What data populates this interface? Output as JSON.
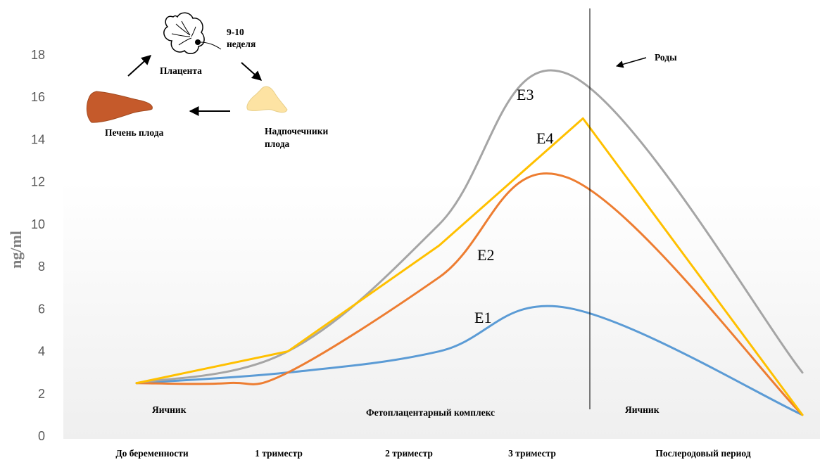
{
  "chart_data": {
    "type": "line",
    "ylabel": "ng/ml",
    "ylim": [
      0,
      18
    ],
    "yticks": [
      0,
      2,
      4,
      6,
      8,
      10,
      12,
      14,
      16,
      18
    ],
    "grid": false,
    "categories": [
      "До беременности",
      "1 триместр",
      "2 триместр",
      "3 триместр",
      "Послеродовый период"
    ],
    "series": [
      {
        "name": "E1",
        "color": "#5b9bd5",
        "smooth": true,
        "points": [
          [
            0,
            2.5
          ],
          [
            1,
            3.0
          ],
          [
            2,
            4.0
          ],
          [
            2.85,
            6.05
          ],
          [
            4.4,
            1.0
          ]
        ]
      },
      {
        "name": "E2",
        "color": "#ed7d31",
        "smooth": true,
        "points": [
          [
            0,
            2.5
          ],
          [
            0.6,
            2.5
          ],
          [
            1.0,
            3.0
          ],
          [
            2.0,
            7.5
          ],
          [
            2.85,
            12.2
          ],
          [
            4.4,
            1.0
          ]
        ]
      },
      {
        "name": "E3",
        "color": "#a5a5a5",
        "smooth": true,
        "points": [
          [
            0,
            2.5
          ],
          [
            1.0,
            4.0
          ],
          [
            2.0,
            10.0
          ],
          [
            2.85,
            17.1
          ],
          [
            4.4,
            3.0
          ]
        ]
      },
      {
        "name": "E4",
        "color": "#ffc000",
        "smooth": false,
        "points": [
          [
            0,
            2.5
          ],
          [
            1.0,
            4.0
          ],
          [
            2.0,
            9.0
          ],
          [
            2.95,
            15.0
          ],
          [
            4.4,
            1.0
          ]
        ]
      }
    ],
    "annotations": {
      "phases": [
        "Яичник",
        "Фетоплацентарный комплекс",
        "Яичник"
      ],
      "birth_label": "Роды"
    }
  },
  "diagram": {
    "week_line1": "9-10",
    "week_line2": "неделя",
    "placenta": "Плацента",
    "liver": "Печень плода",
    "adrenal_line1": "Надпочечники",
    "adrenal_line2": "плода",
    "liver_color": "#c55a2b",
    "adrenal_color": "#fde3a3"
  }
}
